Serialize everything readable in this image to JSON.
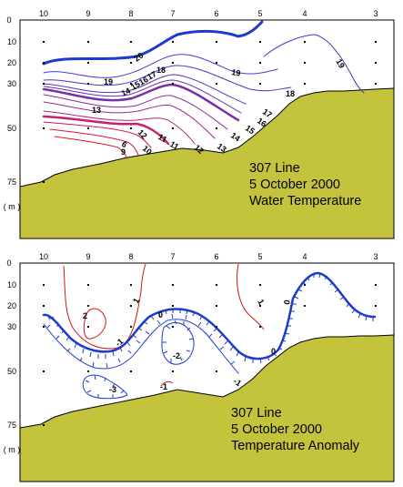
{
  "figure": {
    "colors": {
      "seafloor": "#c4c43c",
      "warm": "#d01818",
      "cool": "#1e3ccc",
      "mid": "#8a2a9a"
    },
    "panels": [
      {
        "id": "water-temperature",
        "title": [
          "307 Line",
          "5 October 2000",
          "Water Temperature"
        ],
        "stations": [
          "10",
          "9",
          "8",
          "7",
          "6",
          "5",
          "4",
          "3"
        ],
        "depth_ticks": [
          "0",
          "10",
          "20",
          "30",
          "50",
          "75"
        ],
        "depth_unit": "( m )",
        "contour_labels": [
          "20",
          "19",
          "18",
          "17",
          "16",
          "15",
          "14",
          "13",
          "12",
          "11",
          "10",
          "9",
          "6",
          "19",
          "18",
          "17",
          "16",
          "15",
          "14",
          "13",
          "12",
          "11",
          "19"
        ]
      },
      {
        "id": "temperature-anomaly",
        "title": [
          "307 Line",
          "5 October 2000",
          "Temperature Anomaly"
        ],
        "stations": [
          "10",
          "9",
          "8",
          "7",
          "6",
          "5",
          "4",
          "3"
        ],
        "depth_ticks": [
          "0",
          "10",
          "20",
          "30",
          "50",
          "75"
        ],
        "depth_unit": "( m )",
        "contour_labels": [
          "2",
          "1",
          "0",
          "-1",
          "-2",
          "-3",
          "-1",
          "1",
          "0",
          "-1",
          "0"
        ]
      }
    ]
  }
}
